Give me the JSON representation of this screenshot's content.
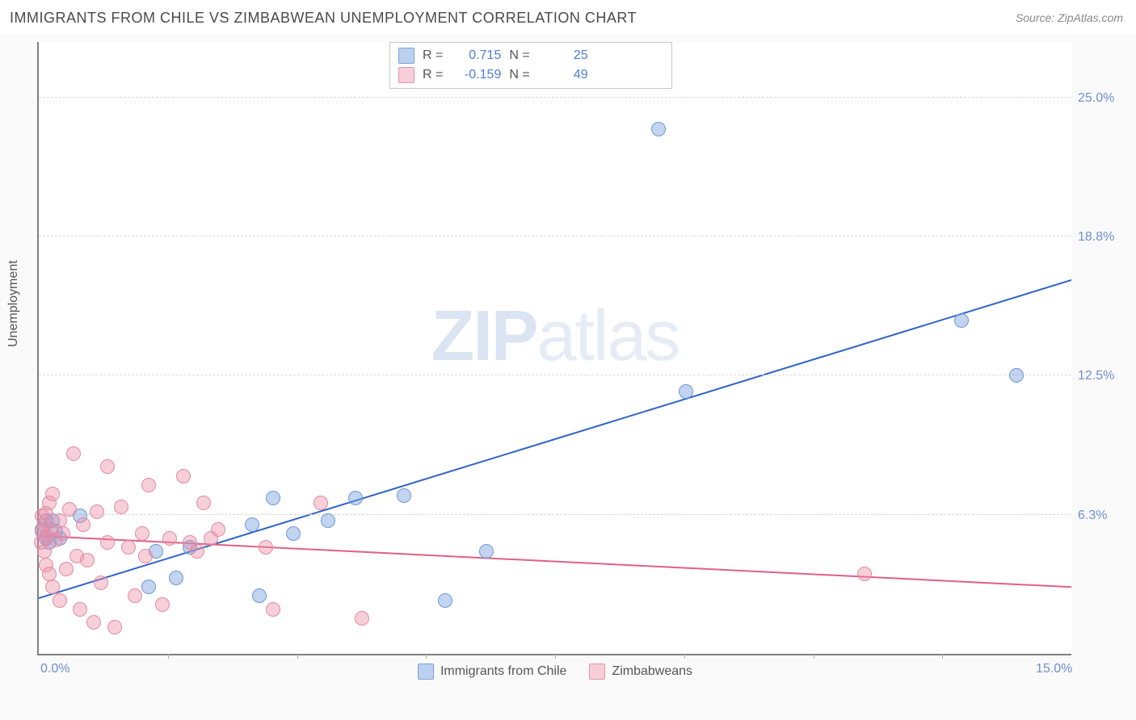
{
  "title": "IMMIGRANTS FROM CHILE VS ZIMBABWEAN UNEMPLOYMENT CORRELATION CHART",
  "source": "Source: ZipAtlas.com",
  "ylabel": "Unemployment",
  "watermark_a": "ZIP",
  "watermark_b": "atlas",
  "chart": {
    "type": "scatter",
    "plot_bg": "#ffffff",
    "outer_bg": "#fafafb",
    "axis_color": "#808080",
    "grid_color": "#d8d8d8",
    "tick_color": "#6b8fd4",
    "label_color": "#555555",
    "title_color": "#4a4a4a",
    "title_fontsize": 18,
    "tick_fontsize": 16,
    "label_fontsize": 16,
    "xlim": [
      0,
      15
    ],
    "ylim": [
      0,
      27.5
    ],
    "yticks": [
      {
        "v": 6.25,
        "label": "6.3%"
      },
      {
        "v": 12.5,
        "label": "12.5%"
      },
      {
        "v": 18.75,
        "label": "18.8%"
      },
      {
        "v": 25.0,
        "label": "25.0%"
      }
    ],
    "xticks": [
      {
        "v": 0,
        "label": "0.0%"
      },
      {
        "v": 15,
        "label": "15.0%"
      }
    ],
    "vticks": [
      1.875,
      3.75,
      5.625,
      7.5,
      9.375,
      11.25,
      13.125
    ],
    "marker_radius": 9,
    "series": [
      {
        "name": "Immigrants from Chile",
        "color_fill": "rgba(120,160,220,0.45)",
        "color_stroke": "#6f98d6",
        "swatch_fill": "#bcd1ef",
        "swatch_stroke": "#7ba0db",
        "R": "0.715",
        "N": "25",
        "trend": {
          "x1": 0,
          "y1": 2.5,
          "x2": 15,
          "y2": 16.8,
          "color": "#2f64c7",
          "width": 2
        },
        "points": [
          [
            0.05,
            5.6
          ],
          [
            0.1,
            6.0
          ],
          [
            0.1,
            5.2
          ],
          [
            0.15,
            5.0
          ],
          [
            0.2,
            6.0
          ],
          [
            0.25,
            5.5
          ],
          [
            0.3,
            5.2
          ],
          [
            0.6,
            6.2
          ],
          [
            1.6,
            3.0
          ],
          [
            1.7,
            4.6
          ],
          [
            2.0,
            3.4
          ],
          [
            2.2,
            4.8
          ],
          [
            3.1,
            5.8
          ],
          [
            3.2,
            2.6
          ],
          [
            3.4,
            7.0
          ],
          [
            3.7,
            5.4
          ],
          [
            4.2,
            6.0
          ],
          [
            4.6,
            7.0
          ],
          [
            5.3,
            7.1
          ],
          [
            5.9,
            2.4
          ],
          [
            6.5,
            4.6
          ],
          [
            9.4,
            11.8
          ],
          [
            9.0,
            23.6
          ],
          [
            13.4,
            15.0
          ],
          [
            14.2,
            12.5
          ]
        ]
      },
      {
        "name": "Zimbabweans",
        "color_fill": "rgba(235,140,165,0.42)",
        "color_stroke": "#e38aa3",
        "swatch_fill": "#f6cdd8",
        "swatch_stroke": "#e794ab",
        "R": "-0.159",
        "N": "49",
        "trend": {
          "x1": 0,
          "y1": 5.3,
          "x2": 15,
          "y2": 3.0,
          "color": "#e15f86",
          "width": 2
        },
        "points": [
          [
            0.03,
            5.0
          ],
          [
            0.05,
            5.5
          ],
          [
            0.05,
            6.2
          ],
          [
            0.08,
            4.6
          ],
          [
            0.08,
            5.8
          ],
          [
            0.1,
            6.3
          ],
          [
            0.1,
            4.0
          ],
          [
            0.12,
            5.3
          ],
          [
            0.15,
            6.8
          ],
          [
            0.15,
            3.6
          ],
          [
            0.18,
            5.6
          ],
          [
            0.2,
            3.0
          ],
          [
            0.2,
            7.2
          ],
          [
            0.25,
            5.1
          ],
          [
            0.3,
            2.4
          ],
          [
            0.3,
            6.0
          ],
          [
            0.35,
            5.4
          ],
          [
            0.4,
            3.8
          ],
          [
            0.45,
            6.5
          ],
          [
            0.5,
            9.0
          ],
          [
            0.55,
            4.4
          ],
          [
            0.6,
            2.0
          ],
          [
            0.65,
            5.8
          ],
          [
            0.7,
            4.2
          ],
          [
            0.8,
            1.4
          ],
          [
            0.85,
            6.4
          ],
          [
            0.9,
            3.2
          ],
          [
            1.0,
            8.4
          ],
          [
            1.0,
            5.0
          ],
          [
            1.1,
            1.2
          ],
          [
            1.2,
            6.6
          ],
          [
            1.3,
            4.8
          ],
          [
            1.4,
            2.6
          ],
          [
            1.5,
            5.4
          ],
          [
            1.55,
            4.4
          ],
          [
            1.6,
            7.6
          ],
          [
            1.8,
            2.2
          ],
          [
            1.9,
            5.2
          ],
          [
            2.1,
            8.0
          ],
          [
            2.2,
            5.0
          ],
          [
            2.3,
            4.6
          ],
          [
            2.4,
            6.8
          ],
          [
            2.5,
            5.2
          ],
          [
            2.6,
            5.6
          ],
          [
            3.3,
            4.8
          ],
          [
            3.4,
            2.0
          ],
          [
            4.1,
            6.8
          ],
          [
            4.7,
            1.6
          ],
          [
            12.0,
            3.6
          ]
        ]
      }
    ],
    "legend_bottom": [
      {
        "label": "Immigrants from Chile",
        "fill": "#bcd1ef",
        "stroke": "#7ba0db"
      },
      {
        "label": "Zimbabweans",
        "fill": "#f6cdd8",
        "stroke": "#e794ab"
      }
    ]
  }
}
